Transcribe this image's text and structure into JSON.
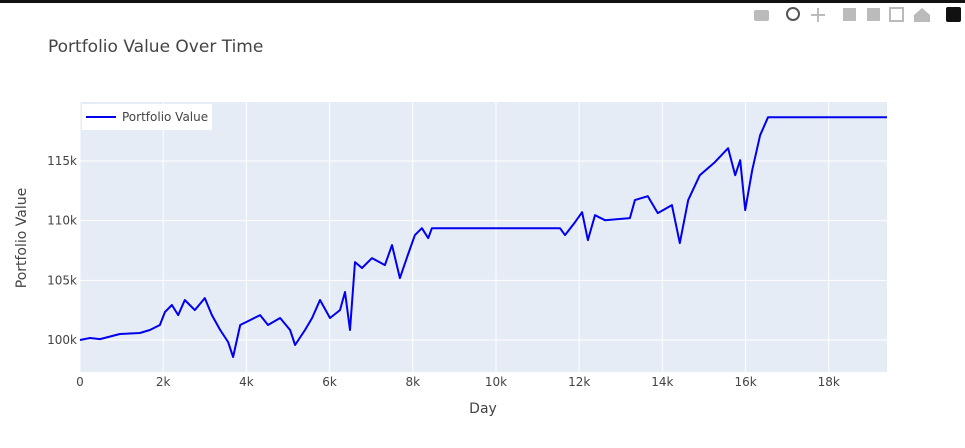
{
  "chart_data": {
    "type": "line",
    "title": "Portfolio Value Over Time",
    "xlabel": "Day",
    "ylabel": "Portfolio Value",
    "x": [
      0,
      240,
      480,
      960,
      1440,
      1680,
      1920,
      2040,
      2210,
      2360,
      2520,
      2760,
      3000,
      3170,
      3370,
      3560,
      3680,
      3850,
      4090,
      4330,
      4520,
      4810,
      5050,
      5170,
      5410,
      5580,
      5770,
      6010,
      6250,
      6370,
      6490,
      6610,
      6780,
      7020,
      7330,
      7500,
      7690,
      7880,
      8050,
      8220,
      8370,
      8460,
      11540,
      11660,
      11900,
      12070,
      12210,
      12380,
      12620,
      13220,
      13340,
      13650,
      13890,
      14230,
      14420,
      14620,
      14900,
      15260,
      15580,
      15750,
      15870,
      15990,
      16160,
      16350,
      16540,
      19400
    ],
    "series": [
      {
        "name": "Portfolio Value",
        "color": "#0000ee",
        "values": [
          100000,
          100170,
          100080,
          100500,
          100590,
          100840,
          101260,
          102340,
          102930,
          102090,
          103350,
          102510,
          103510,
          102090,
          100840,
          99830,
          98580,
          101260,
          101670,
          102090,
          101260,
          101840,
          100840,
          99580,
          100840,
          101840,
          103350,
          101840,
          102510,
          104020,
          100840,
          106530,
          106030,
          106860,
          106280,
          107950,
          105190,
          107110,
          108790,
          109370,
          108540,
          109370,
          109370,
          108790,
          109870,
          110710,
          108370,
          110460,
          110040,
          110210,
          111720,
          112050,
          110630,
          111300,
          108120,
          111720,
          113810,
          114900,
          116070,
          113810,
          115060,
          110880,
          114230,
          117150,
          118660,
          118660
        ]
      }
    ],
    "xlim": [
      0,
      19400
    ],
    "ylim": [
      97320,
      119940
    ],
    "xticks": [
      0,
      {
        "value": 2000,
        "label": "2k"
      },
      {
        "value": 4000,
        "label": "4k"
      },
      {
        "value": 6000,
        "label": "6k"
      },
      {
        "value": 8000,
        "label": "8k"
      },
      {
        "value": 10000,
        "label": "10k"
      },
      {
        "value": 12000,
        "label": "12k"
      },
      {
        "value": 14000,
        "label": "14k"
      },
      {
        "value": 16000,
        "label": "16k"
      },
      {
        "value": 18000,
        "label": "18k"
      }
    ],
    "yticks": [
      {
        "value": 100000,
        "label": "100k"
      },
      {
        "value": 105000,
        "label": "105k"
      },
      {
        "value": 110000,
        "label": "110k"
      },
      {
        "value": 115000,
        "label": "115k"
      }
    ],
    "grid": true,
    "legend": "top-left"
  }
}
